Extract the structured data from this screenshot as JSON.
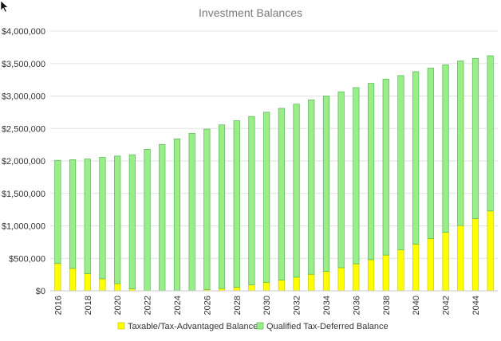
{
  "chart_data": {
    "type": "bar",
    "stacked": true,
    "title": "Investment Balances",
    "xlabel": "",
    "ylabel": "",
    "ylim": [
      0,
      4000000
    ],
    "yticks": [
      "$0",
      "$500,000",
      "$1,000,000",
      "$1,500,000",
      "$2,000,000",
      "$2,500,000",
      "$3,000,000",
      "$3,500,000",
      "$4,000,000"
    ],
    "ytick_values": [
      0,
      500000,
      1000000,
      1500000,
      2000000,
      2500000,
      3000000,
      3500000,
      4000000
    ],
    "categories": [
      2016,
      2017,
      2018,
      2019,
      2020,
      2021,
      2022,
      2023,
      2024,
      2025,
      2026,
      2027,
      2028,
      2029,
      2030,
      2031,
      2032,
      2033,
      2034,
      2035,
      2036,
      2037,
      2038,
      2039,
      2040,
      2041,
      2042,
      2043,
      2044,
      2045
    ],
    "xtick_labels": [
      "2016",
      "2018",
      "2020",
      "2022",
      "2024",
      "2026",
      "2028",
      "2030",
      "2032",
      "2034",
      "2036",
      "2038",
      "2040",
      "2042",
      "2044"
    ],
    "series": [
      {
        "name": "Taxable/Tax-Advantaged Balance",
        "color": "#ffff00",
        "values": [
          420000,
          345000,
          265000,
          185000,
          110000,
          30000,
          0,
          0,
          0,
          0,
          20000,
          35000,
          55000,
          90000,
          130000,
          165000,
          210000,
          255000,
          300000,
          355000,
          415000,
          480000,
          550000,
          630000,
          720000,
          805000,
          900000,
          1005000,
          1110000,
          1230000
        ]
      },
      {
        "name": "Qualified Tax-Deferred Balance",
        "color": "#99ee88",
        "values": [
          1590000,
          1675000,
          1765000,
          1870000,
          1965000,
          2065000,
          2180000,
          2255000,
          2340000,
          2425000,
          2470000,
          2520000,
          2565000,
          2595000,
          2620000,
          2645000,
          2665000,
          2685000,
          2700000,
          2710000,
          2715000,
          2715000,
          2710000,
          2685000,
          2655000,
          2625000,
          2580000,
          2535000,
          2470000,
          2390000
        ]
      }
    ],
    "grid": true,
    "legend_position": "bottom"
  }
}
